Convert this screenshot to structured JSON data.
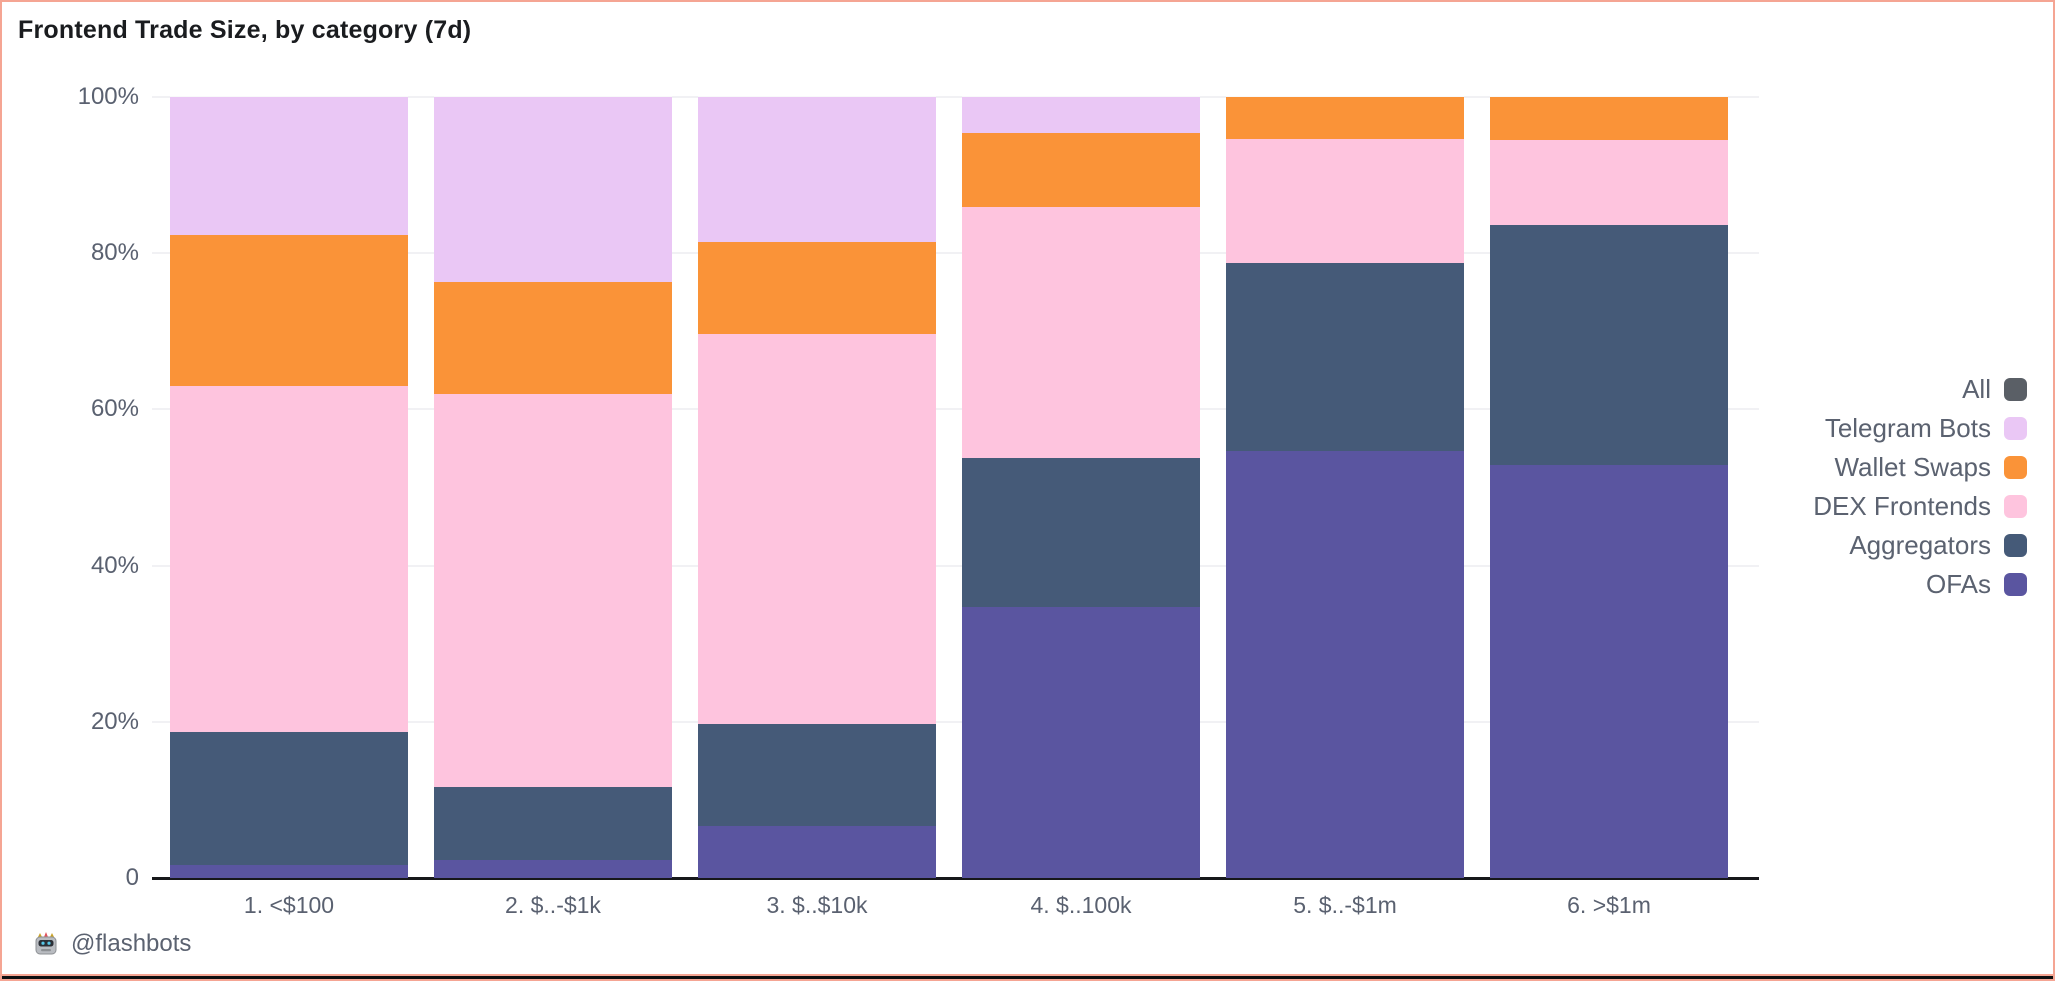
{
  "page": {
    "title": "Frontend Trade Size, by category (7d)",
    "footer": {
      "icon": "flashbots-robot-icon",
      "text": "@flashbots"
    },
    "border_color": "#f5a593",
    "bottom_edge_color": "#0e0f10"
  },
  "chart_data": {
    "type": "bar",
    "stacked": true,
    "orientation": "vertical",
    "title": "Frontend Trade Size, by category (7d)",
    "xlabel": "",
    "ylabel": "",
    "unit": "percent",
    "ylim": [
      0,
      100
    ],
    "y_ticks": [
      "0",
      "20%",
      "40%",
      "60%",
      "80%",
      "100%"
    ],
    "y_tick_values": [
      0,
      20,
      40,
      60,
      80,
      100
    ],
    "grid": "horizontal",
    "grid_color": "#f1f1f4",
    "axis_line_color": "#17181b",
    "tick_label_color": "#5a6170",
    "legend_position": "right",
    "categories": [
      "1. <$100",
      "2. $..-$1k",
      "3. $..$10k",
      "4. $..100k",
      "5. $..-$1m",
      "6. >$1m"
    ],
    "stack_order_bottom_to_top": [
      "OFAs",
      "Aggregators",
      "DEX Frontends",
      "Wallet Swaps",
      "Telegram Bots"
    ],
    "series": [
      {
        "name": "All",
        "color": "#5a5f66",
        "values": [
          0,
          0,
          0,
          0,
          0,
          0
        ]
      },
      {
        "name": "Telegram Bots",
        "color": "#eac7f5",
        "values": [
          17.7,
          23.7,
          18.5,
          4.6,
          0,
          0
        ]
      },
      {
        "name": "Wallet Swaps",
        "color": "#fa9338",
        "values": [
          19.3,
          14.3,
          11.8,
          9.5,
          5.4,
          5.5
        ]
      },
      {
        "name": "DEX Frontends",
        "color": "#fec4de",
        "values": [
          44.3,
          50.3,
          50.0,
          32.1,
          15.9,
          10.9
        ]
      },
      {
        "name": "Aggregators",
        "color": "#455a78",
        "values": [
          17.0,
          9.4,
          13.0,
          19.1,
          24.0,
          30.7
        ]
      },
      {
        "name": "OFAs",
        "color": "#5a55a0",
        "values": [
          1.7,
          2.3,
          6.7,
          34.7,
          54.7,
          52.9
        ]
      }
    ]
  }
}
